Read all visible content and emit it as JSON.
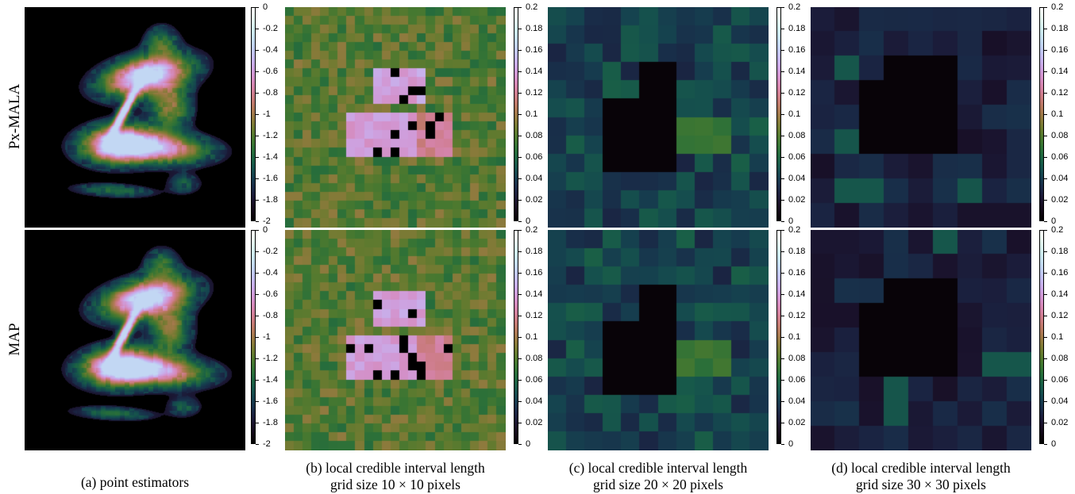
{
  "row_labels": [
    "Px-MALA",
    "MAP"
  ],
  "colorbars": {
    "estimator": {
      "ticks": [
        "0",
        "-0.2",
        "-0.4",
        "-0.6",
        "-0.8",
        "-1",
        "-1.2",
        "-1.4",
        "-1.6",
        "-1.8",
        "-2"
      ],
      "range": [
        -2,
        0
      ]
    },
    "interval": {
      "ticks": [
        "0.2",
        "0.18",
        "0.16",
        "0.14",
        "0.12",
        "0.1",
        "0.08",
        "0.06",
        "0.04",
        "0.02",
        "0"
      ],
      "range": [
        0,
        0.2
      ]
    }
  },
  "colormap": "cubehelix",
  "captions": {
    "a": [
      "(a) point estimators"
    ],
    "b": [
      "(b) local credible interval length",
      "grid size 10 × 10 pixels"
    ],
    "c": [
      "(c) local credible interval length",
      "grid size 20 × 20 pixels"
    ],
    "d": [
      "(d) local credible interval length",
      "grid size 30 × 30 pixels"
    ]
  }
}
